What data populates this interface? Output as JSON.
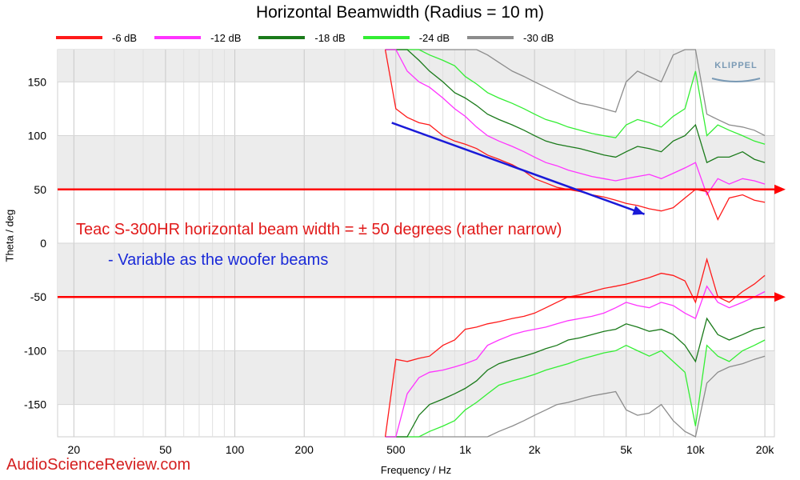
{
  "title": "Horizontal Beamwidth (Radius = 10 m)",
  "watermark": "AudioScienceReview.com",
  "logo_text": "KLIPPEL",
  "annotations": {
    "line1": "Teac S-300HR horizontal beam width = ± 50 degrees (rather narrow)",
    "line2": "- Variable as the woofer beams",
    "line1_color": "#e11a1a",
    "line2_color": "#1a2ad8"
  },
  "legend": [
    {
      "label": "-6 dB",
      "color": "#ff1a1a"
    },
    {
      "label": "-12 dB",
      "color": "#ff33ff"
    },
    {
      "label": "-18 dB",
      "color": "#1a7a1a"
    },
    {
      "label": "-24 dB",
      "color": "#33ee33"
    },
    {
      "label": "-30 dB",
      "color": "#8c8c8c"
    }
  ],
  "chart_data": {
    "type": "line",
    "title": "Horizontal Beamwidth (Radius = 10 m)",
    "xlabel": "Frequency / Hz",
    "ylabel": "Theta / deg",
    "xscale": "log",
    "xlim": [
      17,
      22000
    ],
    "ylim": [
      -180,
      180
    ],
    "grid": true,
    "legend_position": "top",
    "x_ticks": [
      {
        "v": 20,
        "label": "20"
      },
      {
        "v": 50,
        "label": "50"
      },
      {
        "v": 100,
        "label": "100"
      },
      {
        "v": 200,
        "label": "200"
      },
      {
        "v": 500,
        "label": "500"
      },
      {
        "v": 1000,
        "label": "1k"
      },
      {
        "v": 2000,
        "label": "2k"
      },
      {
        "v": 5000,
        "label": "5k"
      },
      {
        "v": 10000,
        "label": "10k"
      },
      {
        "v": 20000,
        "label": "20k"
      }
    ],
    "y_ticks": [
      150,
      100,
      50,
      0,
      -50,
      -100,
      -150
    ],
    "reference_lines": [
      50,
      -50
    ],
    "trend_arrow": {
      "from": [
        480,
        112
      ],
      "to": [
        6000,
        27
      ]
    },
    "x": [
      450,
      500,
      560,
      630,
      700,
      800,
      900,
      1000,
      1120,
      1250,
      1400,
      1600,
      1800,
      2000,
      2240,
      2500,
      2800,
      3150,
      3550,
      4000,
      4500,
      5000,
      5600,
      6300,
      7100,
      8000,
      9000,
      10000,
      11200,
      12500,
      14000,
      16000,
      18000,
      20000
    ],
    "series": [
      {
        "name": "-6 dB",
        "color": "#ff1a1a",
        "upper": [
          180,
          125,
          117,
          112,
          110,
          100,
          95,
          92,
          88,
          82,
          78,
          73,
          67,
          60,
          56,
          52,
          50,
          48,
          45,
          43,
          40,
          37,
          35,
          32,
          30,
          33,
          42,
          50,
          48,
          22,
          42,
          45,
          40,
          38
        ],
        "lower": [
          -180,
          -108,
          -110,
          -107,
          -105,
          -95,
          -90,
          -80,
          -78,
          -75,
          -73,
          -70,
          -68,
          -65,
          -60,
          -55,
          -50,
          -48,
          -45,
          -42,
          -40,
          -38,
          -35,
          -32,
          -28,
          -30,
          -35,
          -55,
          -15,
          -50,
          -55,
          -45,
          -38,
          -30
        ]
      },
      {
        "name": "-12 dB",
        "color": "#ff33ff",
        "upper": [
          180,
          180,
          160,
          150,
          145,
          135,
          125,
          118,
          108,
          100,
          95,
          90,
          85,
          80,
          75,
          72,
          68,
          65,
          62,
          60,
          58,
          60,
          62,
          64,
          60,
          65,
          70,
          75,
          45,
          60,
          55,
          60,
          58,
          55
        ],
        "lower": [
          -180,
          -180,
          -140,
          -125,
          -120,
          -118,
          -115,
          -112,
          -108,
          -95,
          -90,
          -85,
          -82,
          -80,
          -78,
          -75,
          -72,
          -70,
          -68,
          -65,
          -60,
          -55,
          -58,
          -60,
          -55,
          -58,
          -65,
          -70,
          -40,
          -55,
          -60,
          -55,
          -50,
          -45
        ]
      },
      {
        "name": "-18 dB",
        "color": "#1a7a1a",
        "upper": [
          180,
          180,
          180,
          170,
          160,
          150,
          140,
          135,
          128,
          120,
          115,
          110,
          105,
          100,
          95,
          92,
          90,
          88,
          85,
          82,
          80,
          85,
          90,
          88,
          85,
          95,
          100,
          110,
          75,
          80,
          80,
          85,
          78,
          75
        ],
        "lower": [
          -180,
          -180,
          -180,
          -160,
          -150,
          -145,
          -140,
          -135,
          -128,
          -118,
          -112,
          -108,
          -105,
          -102,
          -98,
          -95,
          -90,
          -88,
          -85,
          -82,
          -80,
          -75,
          -78,
          -82,
          -80,
          -85,
          -95,
          -110,
          -70,
          -85,
          -90,
          -85,
          -80,
          -78
        ]
      },
      {
        "name": "-24 dB",
        "color": "#33ee33",
        "upper": [
          180,
          180,
          180,
          180,
          175,
          170,
          165,
          155,
          148,
          140,
          135,
          130,
          125,
          120,
          115,
          112,
          108,
          105,
          102,
          100,
          98,
          110,
          115,
          112,
          108,
          118,
          125,
          160,
          100,
          110,
          105,
          100,
          95,
          92
        ],
        "lower": [
          -180,
          -180,
          -180,
          -180,
          -175,
          -170,
          -165,
          -155,
          -148,
          -140,
          -132,
          -128,
          -125,
          -122,
          -118,
          -115,
          -112,
          -108,
          -105,
          -102,
          -100,
          -95,
          -100,
          -105,
          -100,
          -110,
          -120,
          -170,
          -95,
          -105,
          -110,
          -100,
          -95,
          -90
        ]
      },
      {
        "name": "-30 dB",
        "color": "#8c8c8c",
        "upper": [
          180,
          180,
          180,
          180,
          180,
          180,
          180,
          180,
          180,
          175,
          168,
          160,
          155,
          150,
          145,
          140,
          135,
          130,
          128,
          125,
          122,
          150,
          160,
          155,
          150,
          175,
          180,
          180,
          120,
          115,
          110,
          108,
          105,
          100
        ],
        "lower": [
          -180,
          -180,
          -180,
          -180,
          -180,
          -180,
          -180,
          -180,
          -180,
          -180,
          -175,
          -170,
          -165,
          -160,
          -155,
          -150,
          -148,
          -145,
          -142,
          -140,
          -138,
          -155,
          -160,
          -158,
          -150,
          -165,
          -175,
          -180,
          -130,
          -120,
          -115,
          -112,
          -108,
          -105
        ]
      }
    ]
  }
}
